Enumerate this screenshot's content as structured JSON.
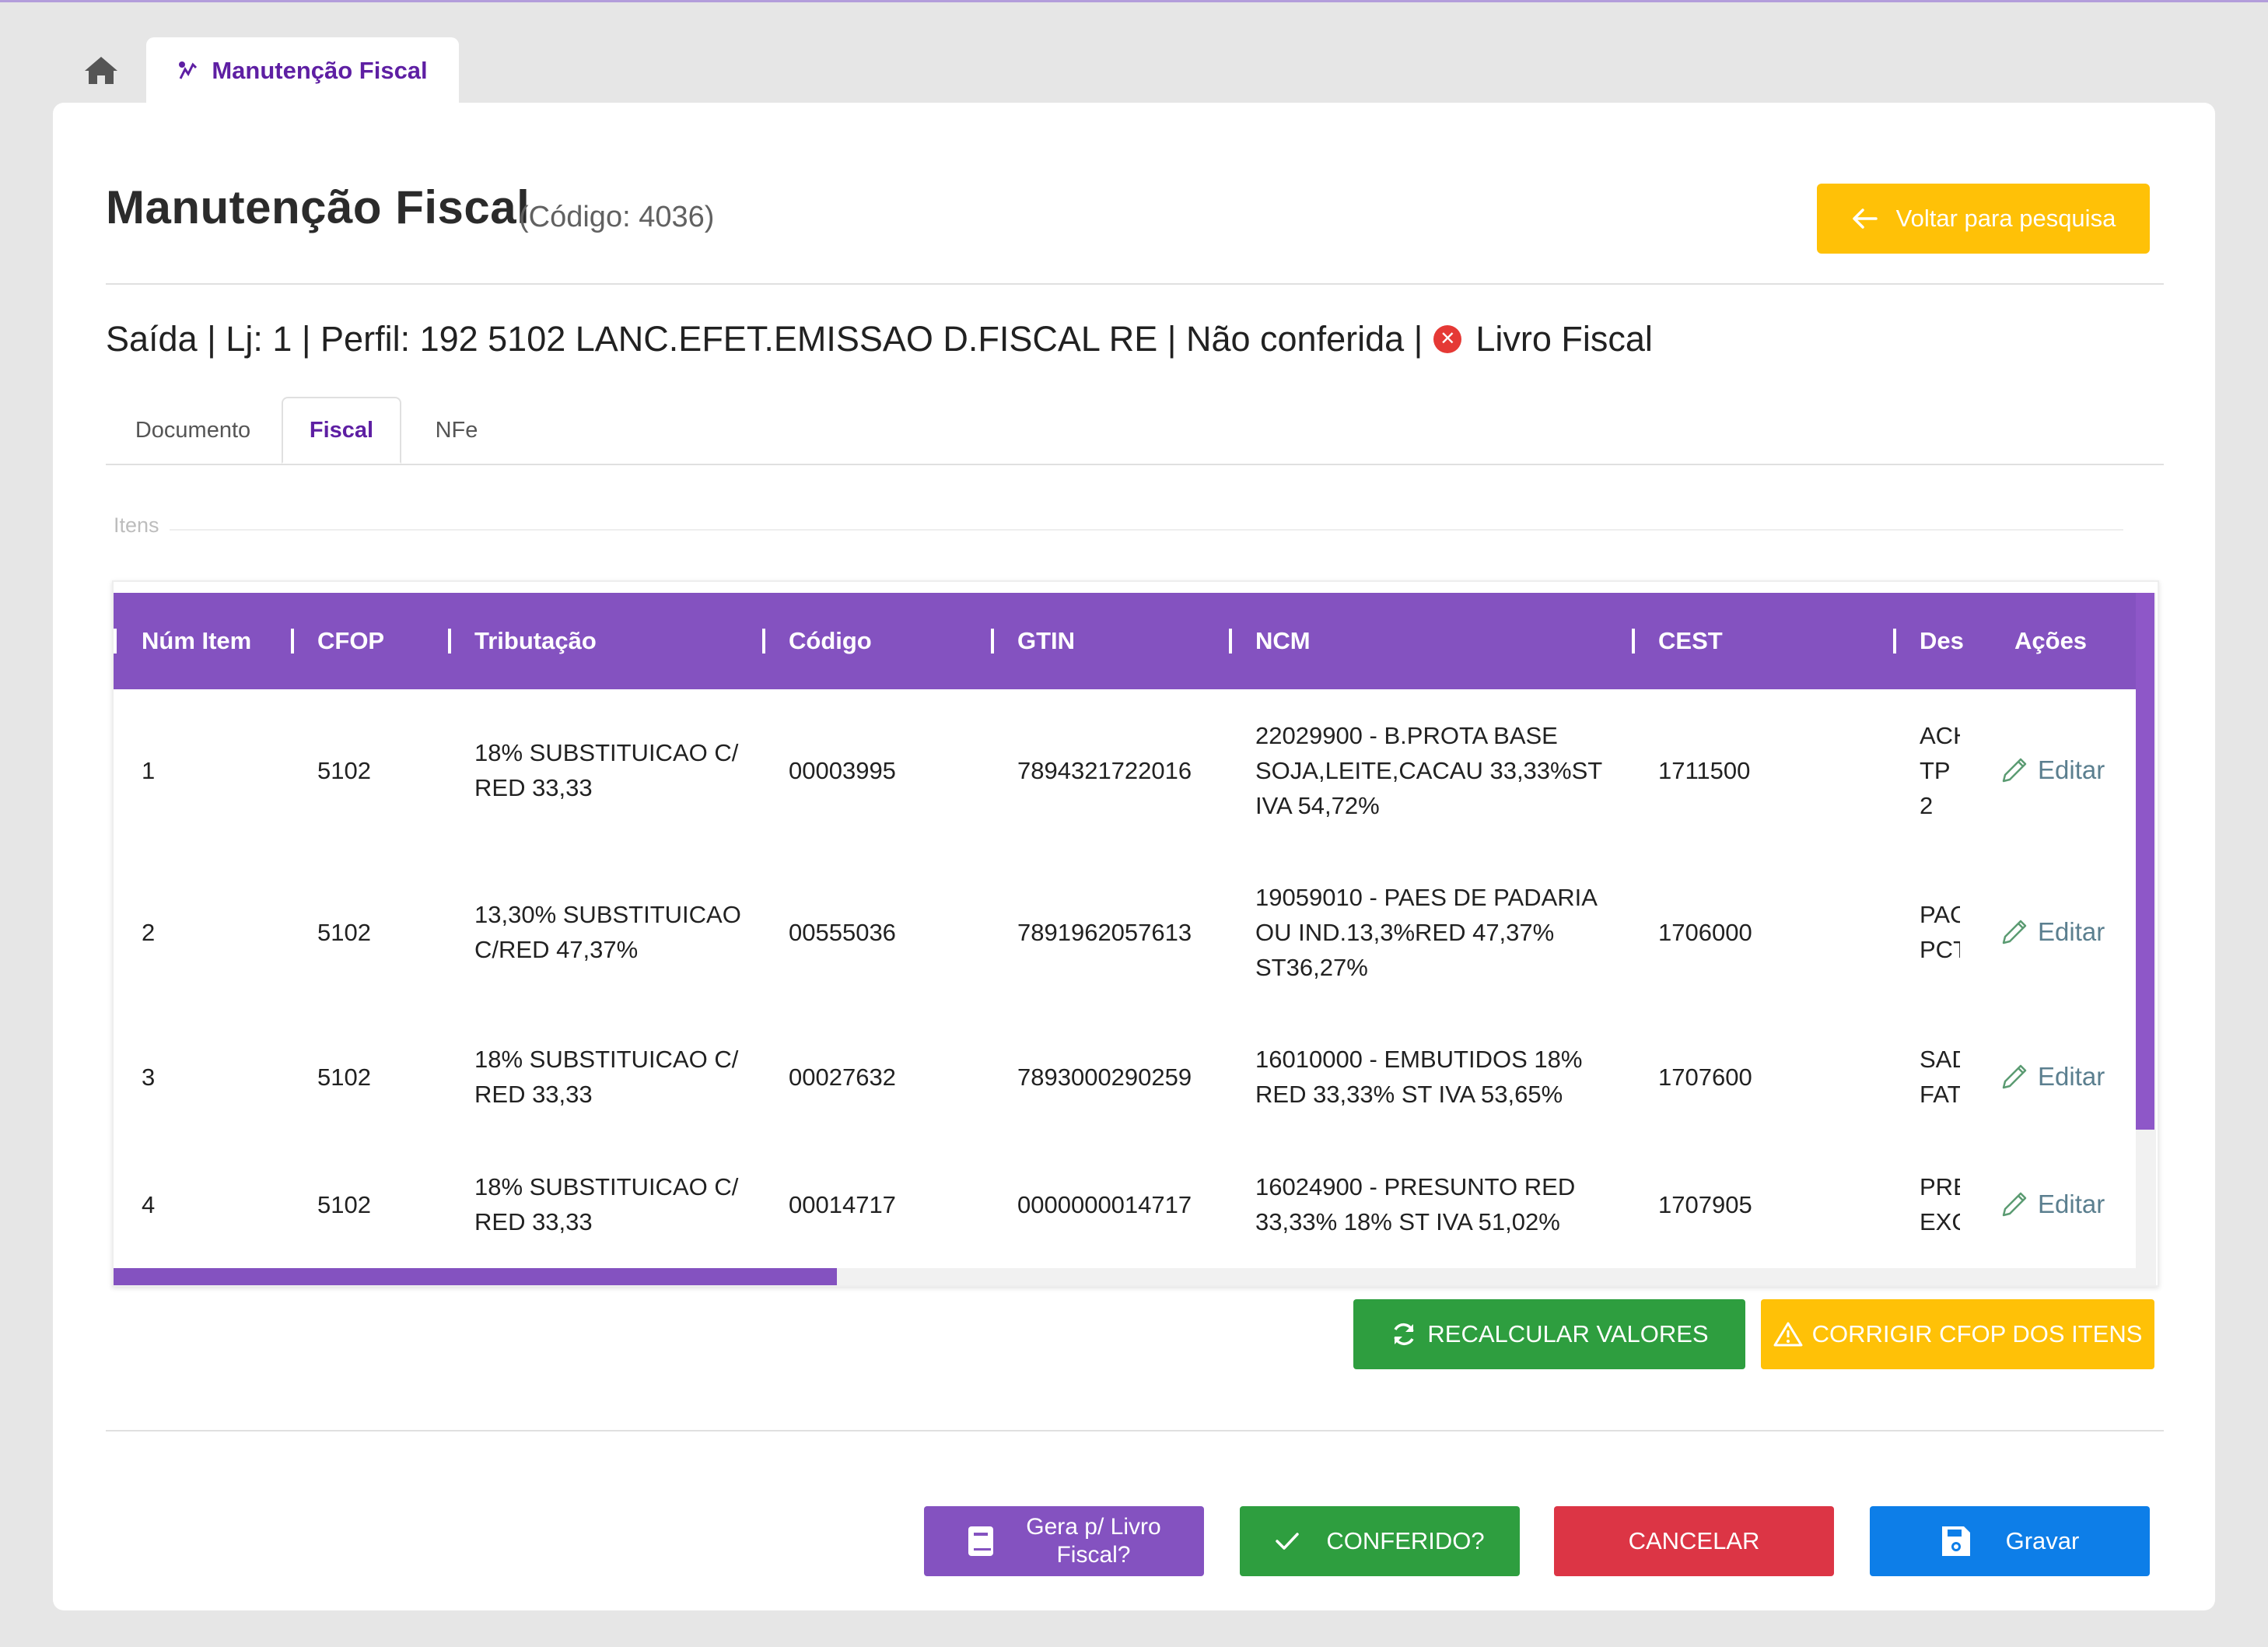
{
  "breadcrumb": {
    "home_icon": "home-icon",
    "tab_icon": "fiscal-icon",
    "tab_label": "Manutenção Fiscal"
  },
  "header": {
    "title": "Manutenção Fiscal",
    "code": "(Código: 4036)",
    "back_label": "Voltar para pesquisa"
  },
  "info": {
    "prefix": "Saída | Lj: 1 | Perfil: 192 5102 LANC.EFET.EMISSAO D.FISCAL RE | Não conferida |",
    "status_icon": "x-circle-icon",
    "livro": "Livro Fiscal"
  },
  "tabs": [
    {
      "label": "Documento"
    },
    {
      "label": "Fiscal"
    },
    {
      "label": "NFe"
    }
  ],
  "section_legend": "Itens",
  "table": {
    "columns": [
      "Núm Item",
      "CFOP",
      "Tributação",
      "Código",
      "GTIN",
      "NCM",
      "CEST",
      "Des",
      "Ações"
    ],
    "edit_label": "Editar",
    "rows": [
      {
        "item": "1",
        "cfop": "5102",
        "tributacao": "18% SUBSTITUICAO C/ RED 33,33",
        "codigo": "00003995",
        "gtin": "7894321722016",
        "ncm": "22029900 - B.PROTA BASE SOJA,LEITE,CACAU 33,33%ST IVA 54,72%",
        "cest": "1711500",
        "des1": "ACH",
        "des2": "TP 2"
      },
      {
        "item": "2",
        "cfop": "5102",
        "tributacao": "13,30% SUBSTITUICAO C/RED 47,37%",
        "codigo": "00555036",
        "gtin": "7891962057613",
        "ncm": "19059010 - PAES DE PADARIA OU IND.13,3%RED 47,37% ST36,27%",
        "cest": "1706000",
        "des1": "PAC",
        "des2": "PCT"
      },
      {
        "item": "3",
        "cfop": "5102",
        "tributacao": "18% SUBSTITUICAO C/ RED 33,33",
        "codigo": "00027632",
        "gtin": "7893000290259",
        "ncm": "16010000 - EMBUTIDOS 18% RED 33,33% ST IVA 53,65%",
        "cest": "1707600",
        "des1": "SAD",
        "des2": "FAT"
      },
      {
        "item": "4",
        "cfop": "5102",
        "tributacao": "18% SUBSTITUICAO C/ RED 33,33",
        "codigo": "00014717",
        "gtin": "0000000014717",
        "ncm": "16024900 - PRESUNTO RED 33,33% 18% ST IVA 51,02%",
        "cest": "1707905",
        "des1": "PRE",
        "des2": "EXC"
      }
    ]
  },
  "actions": {
    "recalc": "RECALCULAR VALORES",
    "corrigir": "CORRIGIR CFOP DOS ITENS"
  },
  "footer": {
    "livro_line1": "Gera p/ Livro",
    "livro_line2": "Fiscal?",
    "conferido": "CONFERIDO?",
    "cancelar": "CANCELAR",
    "gravar": "Gravar"
  },
  "colors": {
    "primary_purple": "#8452c0",
    "accent_purple_text": "#5e1fa3",
    "warning": "#ffc107",
    "success": "#2e9e3f",
    "danger": "#dc3545",
    "info": "#0d7ee8"
  }
}
